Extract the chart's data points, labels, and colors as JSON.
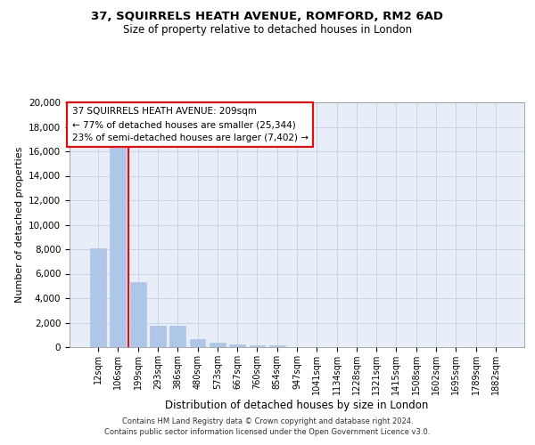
{
  "title1": "37, SQUIRRELS HEATH AVENUE, ROMFORD, RM2 6AD",
  "title2": "Size of property relative to detached houses in London",
  "xlabel": "Distribution of detached houses by size in London",
  "ylabel": "Number of detached properties",
  "categories": [
    "12sqm",
    "106sqm",
    "199sqm",
    "293sqm",
    "386sqm",
    "480sqm",
    "573sqm",
    "667sqm",
    "760sqm",
    "854sqm",
    "947sqm",
    "1041sqm",
    "1134sqm",
    "1228sqm",
    "1321sqm",
    "1415sqm",
    "1508sqm",
    "1602sqm",
    "1695sqm",
    "1789sqm",
    "1882sqm"
  ],
  "values": [
    8100,
    16500,
    5300,
    1750,
    1750,
    620,
    340,
    190,
    160,
    130,
    0,
    0,
    0,
    0,
    0,
    0,
    0,
    0,
    0,
    0,
    0
  ],
  "bar_color": "#aec6e8",
  "bar_edge_color": "#aec6e8",
  "grid_color": "#c8d4e8",
  "background_color": "#e8eef8",
  "annotation_text": "37 SQUIRRELS HEATH AVENUE: 209sqm\n← 77% of detached houses are smaller (25,344)\n23% of semi-detached houses are larger (7,402) →",
  "annotation_box_color": "white",
  "annotation_box_edge": "red",
  "vline_x": 1.5,
  "ylim": [
    0,
    20000
  ],
  "yticks": [
    0,
    2000,
    4000,
    6000,
    8000,
    10000,
    12000,
    14000,
    16000,
    18000,
    20000
  ],
  "footer1": "Contains HM Land Registry data © Crown copyright and database right 2024.",
  "footer2": "Contains public sector information licensed under the Open Government Licence v3.0."
}
